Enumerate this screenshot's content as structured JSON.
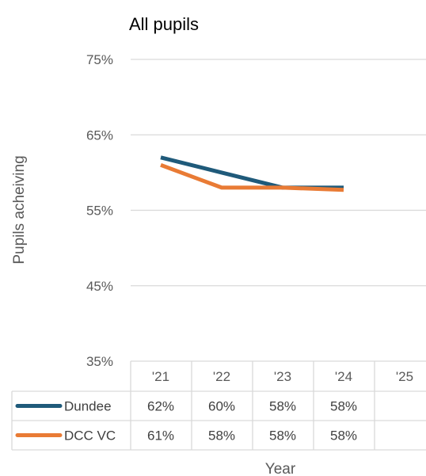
{
  "chart_data": {
    "type": "line",
    "title": "All pupils",
    "xlabel": "Year",
    "ylabel": "Pupils acheiving",
    "categories": [
      "'21",
      "'22",
      "'23",
      "'24",
      "'25"
    ],
    "y_ticks": [
      "75%",
      "65%",
      "55%",
      "45%",
      "35%"
    ],
    "ylim": [
      35,
      75
    ],
    "grid": true,
    "legend": "data-table",
    "series": [
      {
        "name": "Dundee",
        "color": "#1F5A7A",
        "values": [
          62,
          60,
          58,
          58,
          null
        ],
        "table_labels": [
          "62%",
          "60%",
          "58%",
          "58%",
          ""
        ]
      },
      {
        "name": "DCC VC",
        "color": "#E97B35",
        "values": [
          61,
          58,
          58,
          57.7,
          null
        ],
        "table_labels": [
          "61%",
          "58%",
          "58%",
          "58%",
          ""
        ]
      }
    ]
  }
}
